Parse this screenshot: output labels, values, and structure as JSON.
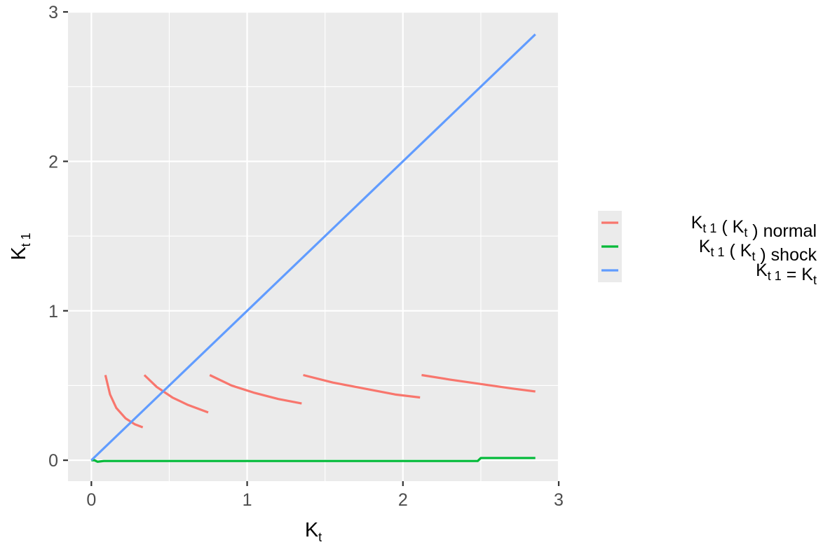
{
  "chart_data": {
    "type": "line",
    "title": "",
    "xlabel": {
      "main": "K",
      "sub": "t"
    },
    "ylabel": {
      "main": "K",
      "sub": "t 1"
    },
    "xlim": [
      -0.15,
      3.0
    ],
    "ylim": [
      -0.14,
      3.0
    ],
    "xticks": [
      0,
      1,
      2,
      3
    ],
    "yticks": [
      0,
      1,
      2,
      3
    ],
    "x_tick_labels": [
      "0",
      "1",
      "2",
      "3"
    ],
    "y_tick_labels": [
      "0",
      "1",
      "2",
      "3"
    ],
    "grid": true,
    "legend_position": "right",
    "series": [
      {
        "name": "K_{t 1}(K_t) normal",
        "color": "#F8766D",
        "segments": [
          [
            [
              0.09,
              0.57
            ],
            [
              0.12,
              0.44
            ],
            [
              0.16,
              0.35
            ],
            [
              0.22,
              0.28
            ],
            [
              0.28,
              0.24
            ],
            [
              0.33,
              0.22
            ]
          ],
          [
            [
              0.34,
              0.57
            ],
            [
              0.42,
              0.49
            ],
            [
              0.52,
              0.42
            ],
            [
              0.62,
              0.37
            ],
            [
              0.75,
              0.32
            ]
          ],
          [
            [
              0.76,
              0.57
            ],
            [
              0.9,
              0.5
            ],
            [
              1.05,
              0.45
            ],
            [
              1.2,
              0.41
            ],
            [
              1.35,
              0.38
            ]
          ],
          [
            [
              1.36,
              0.57
            ],
            [
              1.55,
              0.52
            ],
            [
              1.75,
              0.48
            ],
            [
              1.95,
              0.44
            ],
            [
              2.11,
              0.42
            ]
          ],
          [
            [
              2.12,
              0.57
            ],
            [
              2.3,
              0.54
            ],
            [
              2.5,
              0.51
            ],
            [
              2.7,
              0.48
            ],
            [
              2.85,
              0.46
            ]
          ]
        ]
      },
      {
        "name": "K_{t 1}(K_t) shock",
        "color": "#00BA38",
        "segments": [
          [
            [
              0.0,
              0.0
            ],
            [
              0.02,
              0.0
            ],
            [
              0.04,
              -0.01
            ],
            [
              0.08,
              -0.005
            ],
            [
              0.5,
              -0.005
            ],
            [
              1.0,
              -0.005
            ],
            [
              1.5,
              -0.005
            ],
            [
              2.0,
              -0.005
            ],
            [
              2.48,
              -0.005
            ],
            [
              2.49,
              0.005
            ],
            [
              2.5,
              0.015
            ],
            [
              2.85,
              0.015
            ]
          ]
        ]
      },
      {
        "name": "K_{t 1} = K_t",
        "color": "#619CFF",
        "segments": [
          [
            [
              0.0,
              0.0
            ],
            [
              2.85,
              2.85
            ]
          ]
        ]
      }
    ]
  },
  "legend": {
    "items": [
      {
        "parts": [
          {
            "t": "K",
            "s": "t  1"
          },
          {
            "t": " ( K",
            "s": "t"
          },
          {
            "t": " ) normal",
            "s": ""
          }
        ]
      },
      {
        "parts": [
          {
            "t": "K",
            "s": "t  1"
          },
          {
            "t": " ( K",
            "s": "t"
          },
          {
            "t": " ) shock",
            "s": ""
          }
        ]
      },
      {
        "parts": [
          {
            "t": "K",
            "s": "t  1"
          },
          {
            "t": " = K",
            "s": "t"
          }
        ]
      }
    ]
  }
}
